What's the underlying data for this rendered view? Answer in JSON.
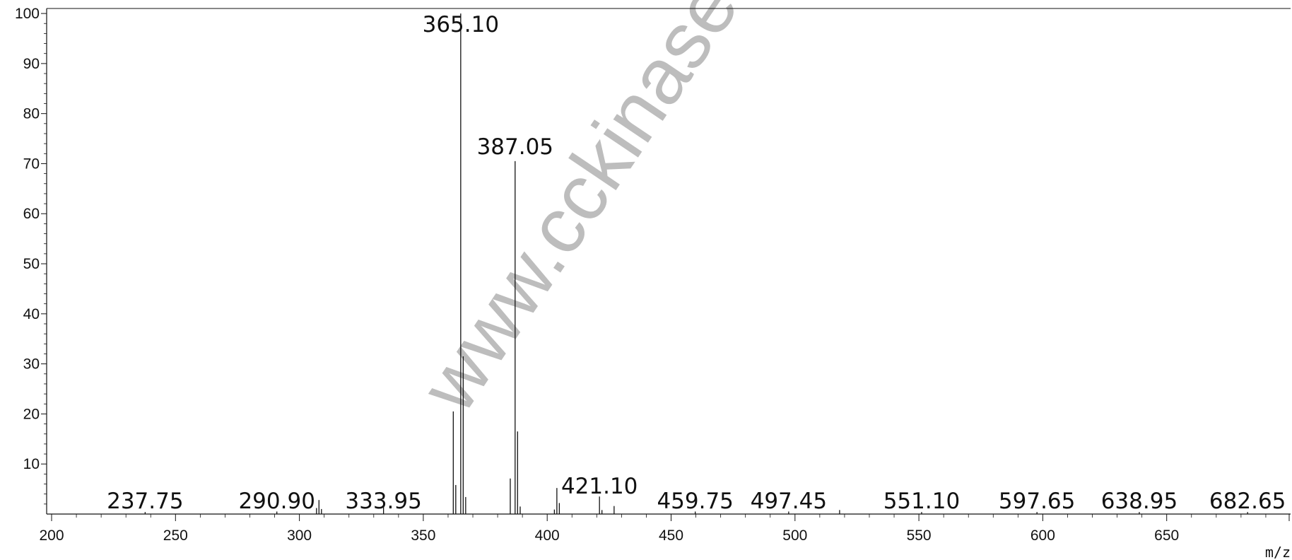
{
  "chart_data": {
    "type": "bar",
    "title": "",
    "xlabel": "m/z",
    "ylabel": "",
    "xlim": [
      198,
      700
    ],
    "ylim": [
      0,
      101
    ],
    "x_ticks": [
      200,
      250,
      300,
      350,
      400,
      450,
      500,
      550,
      600,
      650
    ],
    "y_ticks": [
      10,
      20,
      30,
      40,
      50,
      60,
      70,
      80,
      90,
      100
    ],
    "grid": false,
    "legend": "none",
    "peaks": [
      {
        "x": 237.75,
        "y": 0.4
      },
      {
        "x": 290.9,
        "y": 0.5
      },
      {
        "x": 306.9,
        "y": 1.2
      },
      {
        "x": 307.9,
        "y": 2.8
      },
      {
        "x": 308.9,
        "y": 1.0
      },
      {
        "x": 333.95,
        "y": 2.5
      },
      {
        "x": 362.1,
        "y": 20.5
      },
      {
        "x": 363.1,
        "y": 5.8
      },
      {
        "x": 365.1,
        "y": 100
      },
      {
        "x": 366.1,
        "y": 31.5
      },
      {
        "x": 367.1,
        "y": 3.4
      },
      {
        "x": 385.1,
        "y": 7.1
      },
      {
        "x": 387.05,
        "y": 70.5
      },
      {
        "x": 388.05,
        "y": 16.5
      },
      {
        "x": 389.1,
        "y": 1.5
      },
      {
        "x": 402.9,
        "y": 0.9
      },
      {
        "x": 403.9,
        "y": 5.2
      },
      {
        "x": 404.9,
        "y": 2.2
      },
      {
        "x": 421.1,
        "y": 3.5
      },
      {
        "x": 422.1,
        "y": 0.8
      },
      {
        "x": 427.0,
        "y": 1.6
      },
      {
        "x": 459.75,
        "y": 0.5
      },
      {
        "x": 497.45,
        "y": 0.5
      },
      {
        "x": 518.0,
        "y": 0.8
      },
      {
        "x": 551.1,
        "y": 0.4
      },
      {
        "x": 597.65,
        "y": 0.4
      },
      {
        "x": 638.95,
        "y": 0.4
      },
      {
        "x": 682.65,
        "y": 0.4
      }
    ],
    "annotations": [
      {
        "x": 365.1,
        "y": 100,
        "text": "365.10"
      },
      {
        "x": 387.05,
        "y": 70.5,
        "text": "387.05"
      },
      {
        "x": 237.75,
        "y": 0.4,
        "text": "237.75"
      },
      {
        "x": 290.9,
        "y": 0.5,
        "text": "290.90"
      },
      {
        "x": 333.95,
        "y": 2.5,
        "text": "333.95"
      },
      {
        "x": 421.1,
        "y": 3.5,
        "text": "421.10"
      },
      {
        "x": 459.75,
        "y": 0.5,
        "text": "459.75"
      },
      {
        "x": 497.45,
        "y": 0.5,
        "text": "497.45"
      },
      {
        "x": 551.1,
        "y": 0.4,
        "text": "551.10"
      },
      {
        "x": 597.65,
        "y": 0.4,
        "text": "597.65"
      },
      {
        "x": 638.95,
        "y": 0.4,
        "text": "638.95"
      },
      {
        "x": 682.65,
        "y": 0.4,
        "text": "682.65"
      }
    ]
  },
  "watermark": {
    "text": "www.cckinase.c"
  },
  "colors": {
    "axis": "#111111",
    "peak": "#111111",
    "watermark": "#bdbdbd"
  }
}
